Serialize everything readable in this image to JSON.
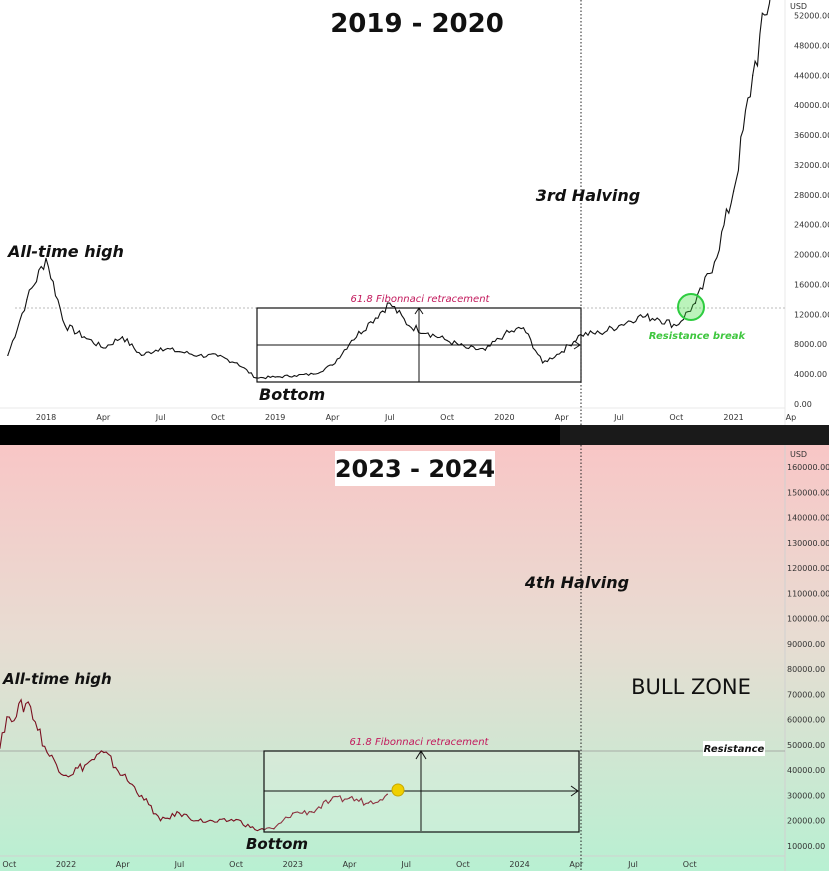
{
  "chart_data": [
    {
      "type": "line",
      "title": "2019 - 2020",
      "y_unit": "USD",
      "ylim": [
        0,
        56000
      ],
      "y_ticks": [
        "0.00",
        "4000.00",
        "8000.00",
        "12000.00",
        "16000.00",
        "20000.00",
        "24000.00",
        "28000.00",
        "32000.00",
        "36000.00",
        "40000.00",
        "44000.00",
        "48000.00",
        "52000.00"
      ],
      "x_ticks": [
        "2018",
        "Apr",
        "Jul",
        "Oct",
        "2019",
        "Apr",
        "Jul",
        "Oct",
        "2020",
        "Apr",
        "Jul",
        "Oct",
        "2021",
        "Ap"
      ],
      "x": [
        "2017-11",
        "2017-12",
        "2018-01",
        "2018-02",
        "2018-03",
        "2018-04",
        "2018-05",
        "2018-06",
        "2018-07",
        "2018-08",
        "2018-09",
        "2018-10",
        "2018-11",
        "2018-12",
        "2019-01",
        "2019-02",
        "2019-03",
        "2019-04",
        "2019-05",
        "2019-06",
        "2019-07",
        "2019-08",
        "2019-09",
        "2019-10",
        "2019-11",
        "2019-12",
        "2020-01",
        "2020-02",
        "2020-03",
        "2020-04",
        "2020-05",
        "2020-06",
        "2020-07",
        "2020-08",
        "2020-09",
        "2020-10",
        "2020-11",
        "2020-12",
        "2021-01",
        "2021-02",
        "2021-03"
      ],
      "values": [
        6500,
        14000,
        19500,
        10500,
        9000,
        7500,
        9000,
        6500,
        7500,
        7000,
        6500,
        6400,
        5500,
        3500,
        3600,
        3800,
        4000,
        5200,
        8500,
        11000,
        13500,
        10500,
        9500,
        8500,
        7500,
        7200,
        9300,
        10200,
        5500,
        7000,
        9300,
        9500,
        10500,
        11700,
        11500,
        10500,
        13500,
        19000,
        28500,
        44000,
        56000
      ],
      "annotations": {
        "ath": "All-time high",
        "bottom": "Bottom",
        "fib": "61.8 Fibonnaci retracement",
        "halving": "3rd Halving",
        "resistance_break": "Resistance break"
      }
    },
    {
      "type": "line",
      "title": "2023 - 2024",
      "y_unit": "USD",
      "ylim": [
        7000,
        165000
      ],
      "y_ticks": [
        "10000.00",
        "20000.00",
        "30000.00",
        "40000.00",
        "50000.00",
        "60000.00",
        "70000.00",
        "80000.00",
        "90000.00",
        "100000.00",
        "110000.00",
        "120000.00",
        "130000.00",
        "140000.00",
        "150000.00",
        "160000.00"
      ],
      "x_ticks": [
        "Oct",
        "2022",
        "Apr",
        "Jul",
        "Oct",
        "2023",
        "Apr",
        "Jul",
        "Oct",
        "2024",
        "Apr",
        "Jul",
        "Oct"
      ],
      "x": [
        "2021-09",
        "2021-10",
        "2021-11",
        "2021-12",
        "2022-01",
        "2022-02",
        "2022-03",
        "2022-04",
        "2022-05",
        "2022-06",
        "2022-07",
        "2022-08",
        "2022-09",
        "2022-10",
        "2022-11",
        "2022-12",
        "2023-01",
        "2023-02",
        "2023-03",
        "2023-04",
        "2023-05",
        "2023-06"
      ],
      "values": [
        41000,
        61000,
        67000,
        47000,
        38000,
        42000,
        47000,
        38000,
        30000,
        20000,
        23000,
        20000,
        19500,
        20500,
        16500,
        16800,
        23000,
        23500,
        28000,
        29000,
        27000,
        30500
      ],
      "annotations": {
        "ath": "All-time high",
        "bottom": "Bottom",
        "fib": "61.8 Fibonnaci retracement",
        "halving": "4th Halving",
        "resistance": "Resistance",
        "zone": "BULL ZONE"
      }
    }
  ]
}
